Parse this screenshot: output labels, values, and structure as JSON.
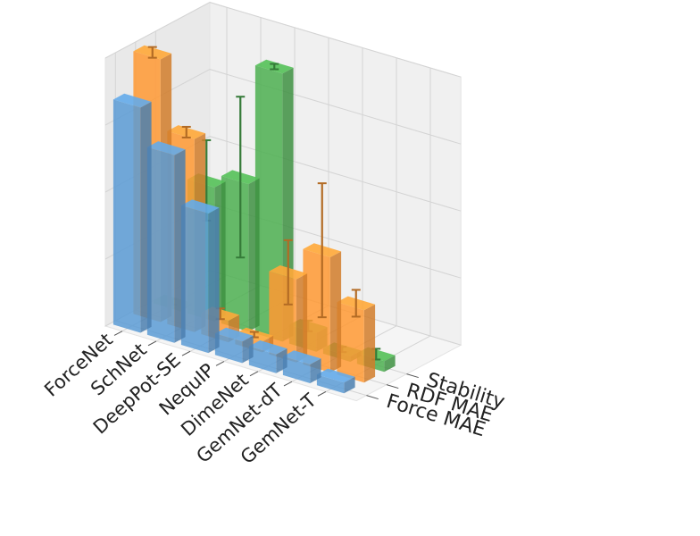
{
  "chart_data": {
    "type": "bar3d",
    "categories": [
      "ForceNet",
      "SchNet",
      "DeepPot-SE",
      "NequIP",
      "DimeNet",
      "GemNet-dT",
      "GemNet-T"
    ],
    "series": [
      {
        "name": "Force MAE",
        "color": "#5b9bd5",
        "values": [
          0.84,
          0.7,
          0.52,
          0.08,
          0.07,
          0.07,
          0.04
        ],
        "errors": [
          0,
          0,
          0,
          0,
          0,
          0,
          0
        ]
      },
      {
        "name": "RDF MAE",
        "color": "#ff9933",
        "values": [
          0.98,
          0.72,
          0.08,
          0.04,
          0.31,
          0.43,
          0.27
        ],
        "errors": [
          0.02,
          0.02,
          0.02,
          0.01,
          0.12,
          0.25,
          0.05
        ]
      },
      {
        "name": "Stability",
        "color": "#4caf50",
        "values": [
          0.01,
          0.5,
          0.55,
          1.0,
          0.07,
          0.02,
          0.04
        ],
        "errors": [
          0.01,
          0.15,
          0.3,
          0.01,
          0.02,
          0.01,
          0.02
        ]
      }
    ],
    "zlim": [
      0,
      1
    ]
  }
}
